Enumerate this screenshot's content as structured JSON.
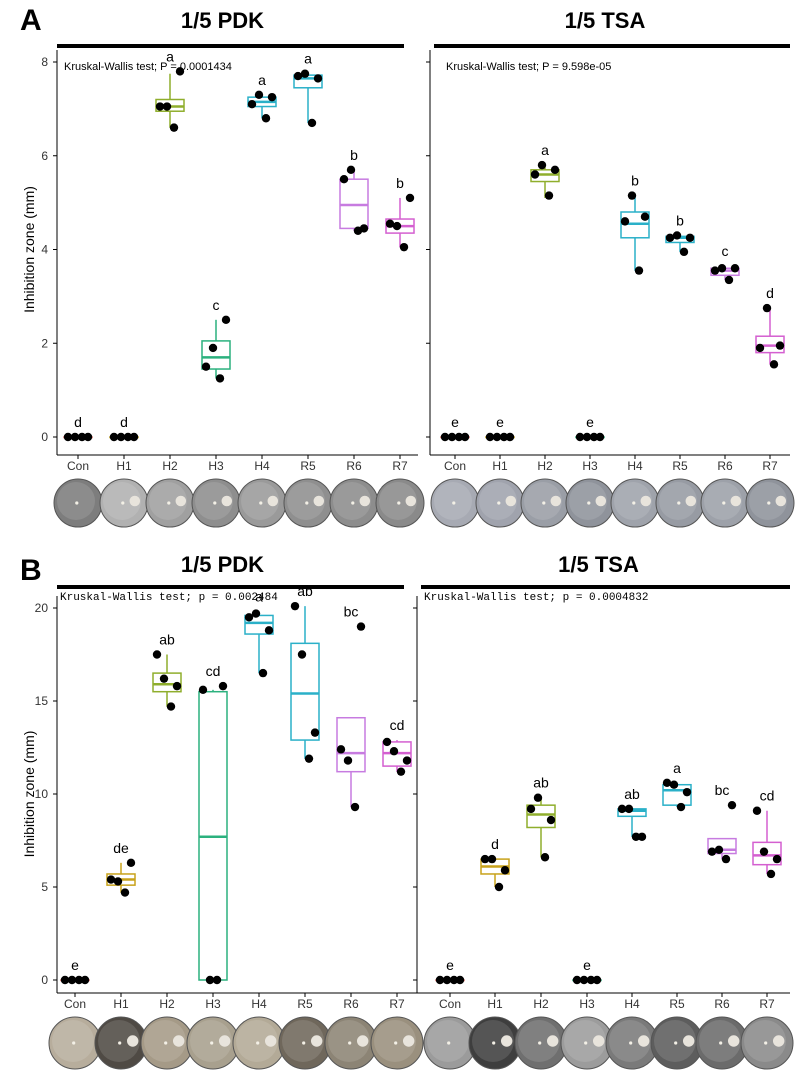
{
  "figure": {
    "panels": [
      {
        "letter": "A"
      },
      {
        "letter": "B"
      }
    ]
  },
  "chart_data": [
    {
      "type": "box",
      "panel": "A",
      "title": "1/5 PDK",
      "annotation": "Kruskal-Wallis test; P = 0.0001434",
      "ylabel": "Inhibition zone (mm)",
      "ylim": [
        0,
        8
      ],
      "yticks": [
        0,
        2,
        4,
        6,
        8
      ],
      "categories": [
        "Con",
        "H1",
        "H2",
        "H3",
        "H4",
        "R5",
        "R6",
        "R7"
      ],
      "colors": [
        "#e8766f",
        "#c8a21a",
        "#8fae2c",
        "#2bb17e",
        "#2ab0c8",
        "#2ab0c8",
        "#c77be0",
        "#d45fd0"
      ],
      "letters": [
        "d",
        "d",
        "a",
        "c",
        "a",
        "a",
        "b",
        "b"
      ],
      "boxes": [
        {
          "q1": 0,
          "median": 0,
          "q3": 0,
          "min": 0,
          "max": 0,
          "points": [
            0,
            0,
            0,
            0
          ]
        },
        {
          "q1": 0,
          "median": 0,
          "q3": 0,
          "min": 0,
          "max": 0,
          "points": [
            0,
            0,
            0,
            0
          ]
        },
        {
          "q1": 6.95,
          "median": 7.05,
          "q3": 7.2,
          "min": 6.6,
          "max": 7.75,
          "points": [
            7.05,
            7.05,
            6.6,
            7.8
          ]
        },
        {
          "q1": 1.45,
          "median": 1.7,
          "q3": 2.05,
          "min": 1.25,
          "max": 2.5,
          "points": [
            1.5,
            1.9,
            1.25,
            2.5
          ]
        },
        {
          "q1": 7.05,
          "median": 7.15,
          "q3": 7.25,
          "min": 6.8,
          "max": 7.3,
          "points": [
            7.1,
            7.3,
            6.8,
            7.25
          ]
        },
        {
          "q1": 7.45,
          "median": 7.65,
          "q3": 7.72,
          "min": 6.7,
          "max": 7.75,
          "points": [
            7.7,
            7.75,
            6.7,
            7.65
          ]
        },
        {
          "q1": 4.45,
          "median": 4.95,
          "q3": 5.5,
          "min": 4.4,
          "max": 5.7,
          "points": [
            5.5,
            5.7,
            4.4,
            4.45
          ]
        },
        {
          "q1": 4.35,
          "median": 4.5,
          "q3": 4.65,
          "min": 4.05,
          "max": 5.1,
          "points": [
            4.55,
            4.5,
            4.05,
            5.1
          ]
        }
      ]
    },
    {
      "type": "box",
      "panel": "A",
      "title": "1/5 TSA",
      "annotation": "Kruskal-Wallis test; P = 9.598e-05",
      "ylim": [
        0,
        8
      ],
      "categories": [
        "Con",
        "H1",
        "H2",
        "H3",
        "H4",
        "R5",
        "R6",
        "R7"
      ],
      "colors": [
        "#e8766f",
        "#c8a21a",
        "#8fae2c",
        "#2bb17e",
        "#2ab0c8",
        "#2ab0c8",
        "#c77be0",
        "#d45fd0"
      ],
      "letters": [
        "e",
        "e",
        "a",
        "e",
        "b",
        "b",
        "c",
        "d"
      ],
      "boxes": [
        {
          "q1": 0,
          "median": 0,
          "q3": 0,
          "min": 0,
          "max": 0,
          "points": [
            0,
            0,
            0,
            0
          ]
        },
        {
          "q1": 0,
          "median": 0,
          "q3": 0,
          "min": 0,
          "max": 0,
          "points": [
            0,
            0,
            0,
            0
          ]
        },
        {
          "q1": 5.45,
          "median": 5.6,
          "q3": 5.7,
          "min": 5.1,
          "max": 5.75,
          "points": [
            5.6,
            5.8,
            5.15,
            5.7
          ]
        },
        {
          "q1": 0,
          "median": 0,
          "q3": 0,
          "min": 0,
          "max": 0,
          "points": [
            0,
            0,
            0,
            0
          ]
        },
        {
          "q1": 4.25,
          "median": 4.55,
          "q3": 4.8,
          "min": 3.55,
          "max": 5.15,
          "points": [
            4.6,
            5.15,
            3.55,
            4.7
          ]
        },
        {
          "q1": 4.15,
          "median": 4.25,
          "q3": 4.28,
          "min": 3.95,
          "max": 4.3,
          "points": [
            4.25,
            4.3,
            3.95,
            4.25
          ]
        },
        {
          "q1": 3.45,
          "median": 3.55,
          "q3": 3.6,
          "min": 3.35,
          "max": 3.65,
          "points": [
            3.55,
            3.6,
            3.35,
            3.6
          ]
        },
        {
          "q1": 1.8,
          "median": 1.95,
          "q3": 2.15,
          "min": 1.55,
          "max": 2.75,
          "points": [
            1.9,
            2.75,
            1.55,
            1.95
          ]
        }
      ]
    },
    {
      "type": "box",
      "panel": "B",
      "title": "1/5 PDK",
      "annotation": "Kruskal-Wallis test; p  = 0.002484",
      "ylabel": "Inhibition zone (mm)",
      "ylim": [
        0,
        20
      ],
      "yticks": [
        0,
        5,
        10,
        15,
        20
      ],
      "categories": [
        "Con",
        "H1",
        "H2",
        "H3",
        "H4",
        "R5",
        "R6",
        "R7"
      ],
      "colors": [
        "#e8766f",
        "#c8a21a",
        "#8fae2c",
        "#2bb17e",
        "#2ab0c8",
        "#2ab0c8",
        "#c77be0",
        "#d45fd0"
      ],
      "letters": [
        "e",
        "de",
        "ab",
        "cd",
        "a",
        "ab",
        "bc",
        "cd"
      ],
      "boxes": [
        {
          "q1": 0,
          "median": 0,
          "q3": 0,
          "min": 0,
          "max": 0,
          "points": [
            0,
            0,
            0,
            0
          ]
        },
        {
          "q1": 5.1,
          "median": 5.4,
          "q3": 5.7,
          "min": 4.7,
          "max": 6.3,
          "points": [
            5.4,
            5.3,
            4.7,
            6.3
          ]
        },
        {
          "q1": 15.5,
          "median": 15.9,
          "q3": 16.5,
          "min": 14.7,
          "max": 17.5,
          "points": [
            17.5,
            16.2,
            14.7,
            15.8
          ]
        },
        {
          "q1": 0,
          "median": 7.7,
          "q3": 15.5,
          "min": 0,
          "max": 15.6,
          "points": [
            15.6,
            0,
            0,
            15.8
          ]
        },
        {
          "q1": 18.6,
          "median": 19.2,
          "q3": 19.6,
          "min": 16.5,
          "max": 19.8,
          "points": [
            19.5,
            19.7,
            16.5,
            18.8
          ]
        },
        {
          "q1": 12.9,
          "median": 15.4,
          "q3": 18.1,
          "min": 11.9,
          "max": 20.1,
          "points": [
            20.1,
            17.5,
            11.9,
            13.3
          ]
        },
        {
          "q1": 11.2,
          "median": 12.2,
          "q3": 14.1,
          "min": 9.3,
          "max": 14.1,
          "points": [
            12.4,
            11.8,
            9.3,
            19.0
          ]
        },
        {
          "q1": 11.5,
          "median": 12.2,
          "q3": 12.8,
          "min": 11.2,
          "max": 12.9,
          "points": [
            12.8,
            12.3,
            11.2,
            11.8
          ]
        }
      ]
    },
    {
      "type": "box",
      "panel": "B",
      "title": "1/5 TSA",
      "annotation": "Kruskal-Wallis test; p  = 0.0004832",
      "ylim": [
        0,
        20
      ],
      "categories": [
        "Con",
        "H1",
        "H2",
        "H3",
        "H4",
        "R5",
        "R6",
        "R7"
      ],
      "colors": [
        "#e8766f",
        "#c8a21a",
        "#8fae2c",
        "#2bb17e",
        "#2ab0c8",
        "#2ab0c8",
        "#c77be0",
        "#d45fd0"
      ],
      "letters": [
        "e",
        "d",
        "ab",
        "e",
        "ab",
        "a",
        "bc",
        "cd"
      ],
      "boxes": [
        {
          "q1": 0,
          "median": 0,
          "q3": 0,
          "min": 0,
          "max": 0,
          "points": [
            0,
            0,
            0,
            0
          ]
        },
        {
          "q1": 5.7,
          "median": 6.1,
          "q3": 6.5,
          "min": 5.0,
          "max": 6.5,
          "points": [
            6.5,
            6.5,
            5.0,
            5.9
          ]
        },
        {
          "q1": 8.2,
          "median": 8.9,
          "q3": 9.4,
          "min": 6.6,
          "max": 9.8,
          "points": [
            9.2,
            9.8,
            6.6,
            8.6
          ]
        },
        {
          "q1": 0,
          "median": 0,
          "q3": 0,
          "min": 0,
          "max": 0,
          "points": [
            0,
            0,
            0,
            0
          ]
        },
        {
          "q1": 8.8,
          "median": 9.1,
          "q3": 9.2,
          "min": 7.7,
          "max": 9.2,
          "points": [
            9.2,
            9.2,
            7.7,
            7.7
          ]
        },
        {
          "q1": 9.4,
          "median": 10.2,
          "q3": 10.5,
          "min": 9.3,
          "max": 10.6,
          "points": [
            10.6,
            10.5,
            9.3,
            10.1
          ]
        },
        {
          "q1": 6.8,
          "median": 7.0,
          "q3": 7.6,
          "min": 6.5,
          "max": 7.6,
          "points": [
            6.9,
            7.0,
            6.5,
            9.4
          ]
        },
        {
          "q1": 6.2,
          "median": 6.7,
          "q3": 7.4,
          "min": 5.7,
          "max": 9.1,
          "points": [
            9.1,
            6.9,
            5.7,
            6.5
          ]
        }
      ]
    }
  ]
}
